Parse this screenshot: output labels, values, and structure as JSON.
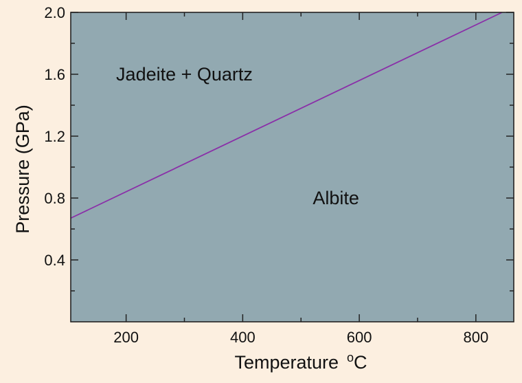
{
  "chart_data": {
    "type": "line",
    "title": "",
    "xlabel": "Temperature",
    "xlabel_unit_sup": "o",
    "xlabel_unit": "C",
    "ylabel": "Pressure (GPa)",
    "xlim": [
      105,
      865
    ],
    "ylim": [
      0.0,
      2.0
    ],
    "x_ticks": [
      200,
      400,
      600,
      800
    ],
    "x_tick_labels": [
      "200",
      "400",
      "600",
      "800"
    ],
    "x_minor_ticks": [
      300,
      500,
      700
    ],
    "y_ticks": [
      0.4,
      0.8,
      1.2,
      1.6,
      2.0
    ],
    "y_tick_labels": [
      "0.4",
      "0.8",
      "1.2",
      "1.6",
      "2.0"
    ],
    "y_minor_ticks": [
      0.2,
      0.6,
      1.0,
      1.4,
      1.8
    ],
    "grid": false,
    "series": [
      {
        "x": [
          105,
          845
        ],
        "y": [
          0.67,
          2.0
        ],
        "color": "#8a2fa8"
      }
    ],
    "annotations": [
      {
        "text": "Jadeite + Quartz",
        "x": 300,
        "y": 1.6
      },
      {
        "text": "Albite",
        "x": 560,
        "y": 0.8
      }
    ],
    "colors": {
      "plot_background": "#92a9b1",
      "page_background": "#fcefe0",
      "boundary_line": "#8a2fa8"
    }
  }
}
